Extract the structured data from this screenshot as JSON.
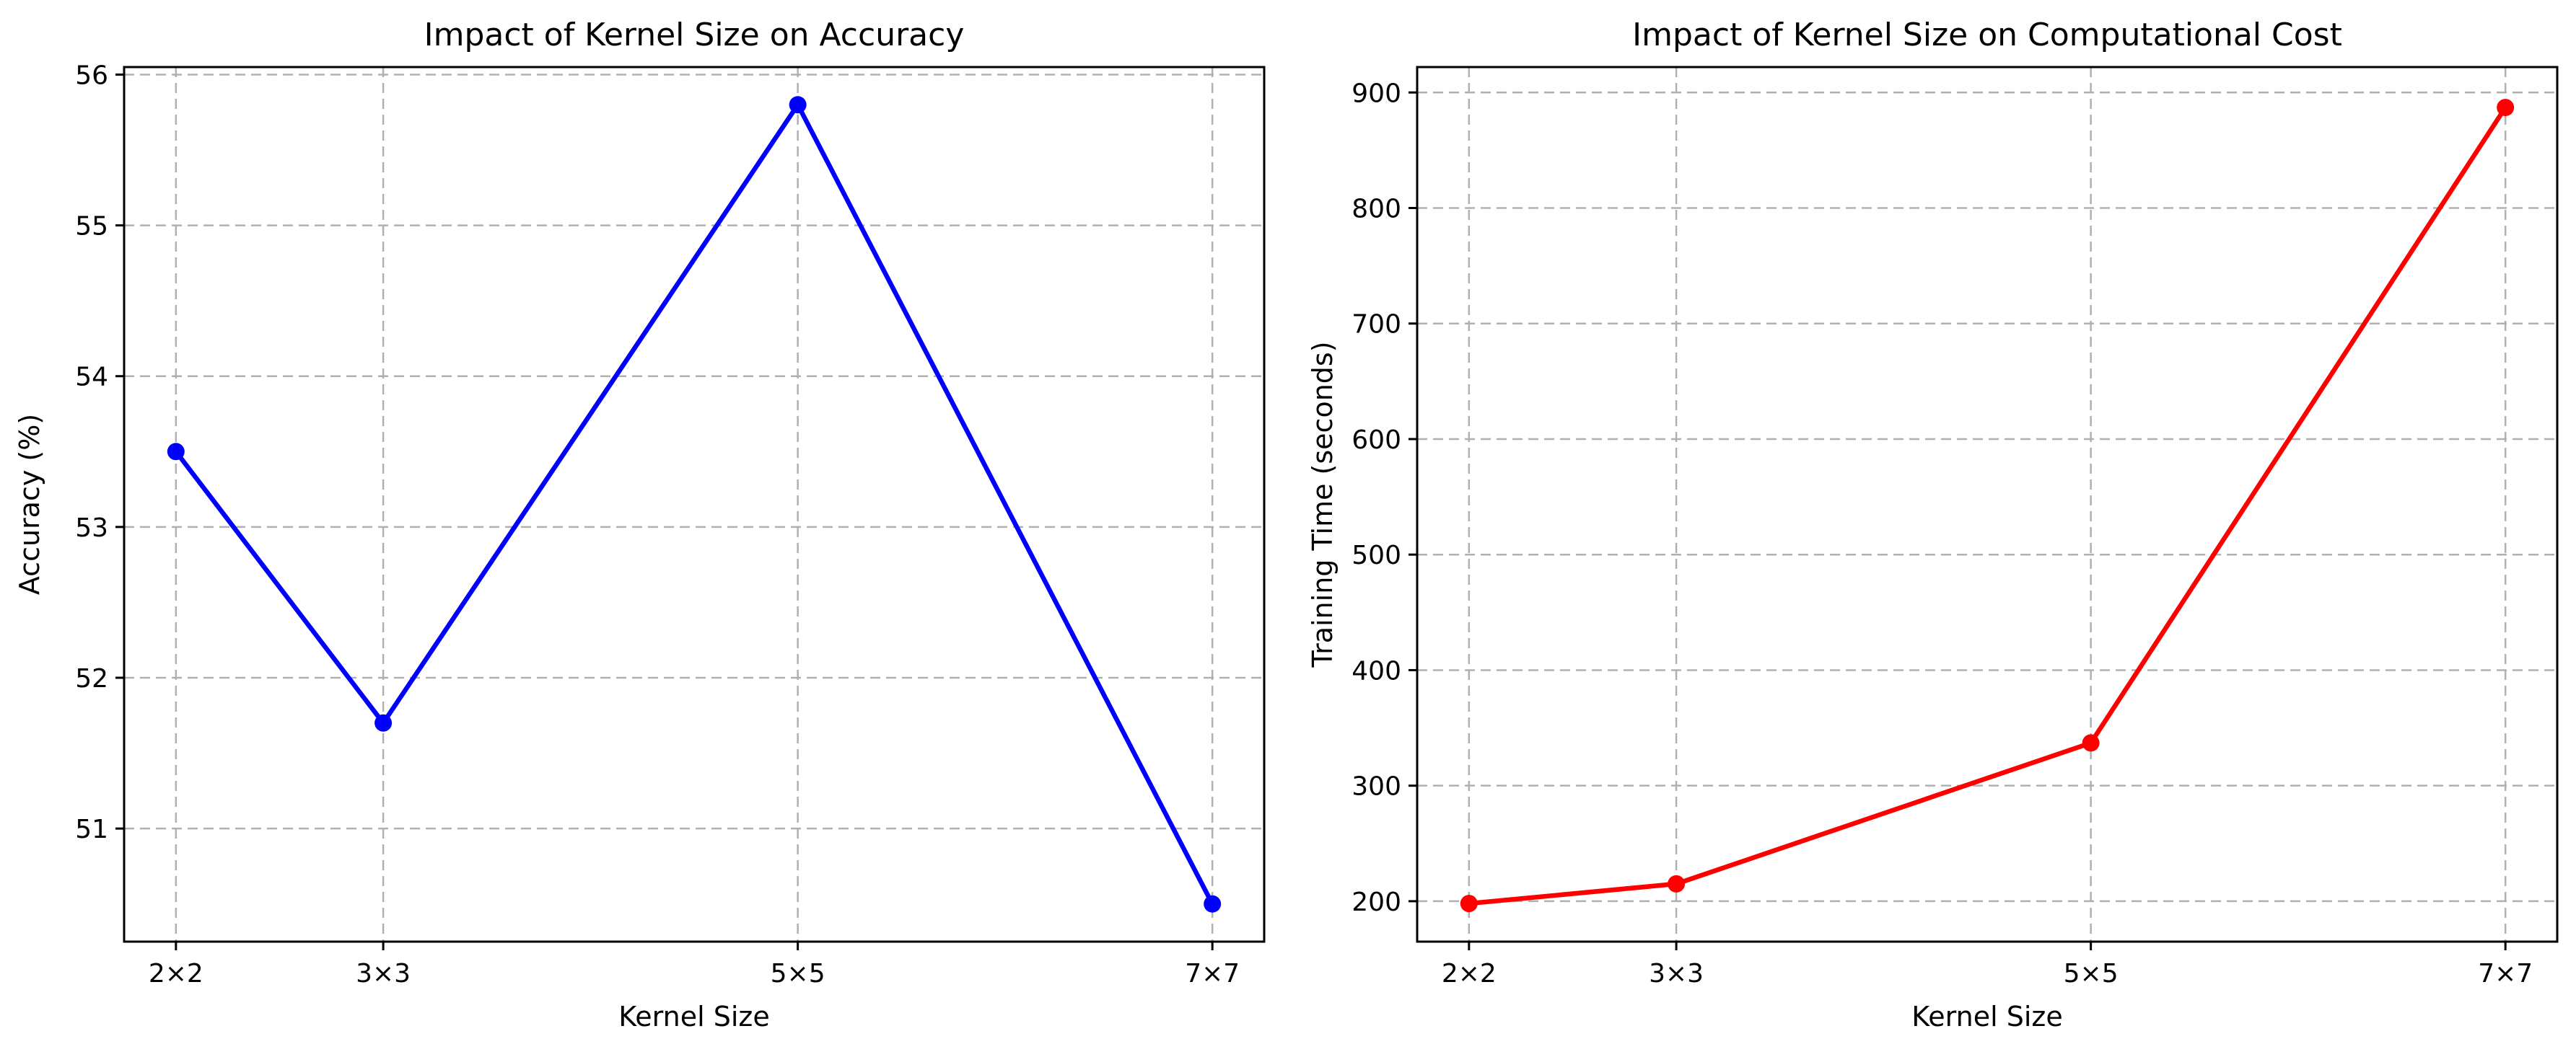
{
  "chart_data": [
    {
      "type": "line",
      "title": "Impact of Kernel Size on Accuracy",
      "xlabel": "Kernel Size",
      "ylabel": "Accuracy (%)",
      "x": [
        2,
        3,
        5,
        7
      ],
      "categories": [
        "2×2",
        "3×3",
        "5×5",
        "7×7"
      ],
      "xlim": [
        1.75,
        7.25
      ],
      "ylim": [
        50.25,
        56.05
      ],
      "yticks": [
        51,
        52,
        53,
        54,
        55,
        56
      ],
      "grid": true,
      "series": [
        {
          "values": [
            53.5,
            51.7,
            55.8,
            50.5
          ],
          "color": "#0000ff",
          "marker": "circle"
        }
      ]
    },
    {
      "type": "line",
      "title": "Impact of Kernel Size on Computational Cost",
      "xlabel": "Kernel Size",
      "ylabel": "Training Time (seconds)",
      "x": [
        2,
        3,
        5,
        7
      ],
      "categories": [
        "2×2",
        "3×3",
        "5×5",
        "7×7"
      ],
      "xlim": [
        1.75,
        7.25
      ],
      "ylim": [
        165,
        922
      ],
      "yticks": [
        200,
        300,
        400,
        500,
        600,
        700,
        800,
        900
      ],
      "grid": true,
      "series": [
        {
          "values": [
            198,
            215,
            337,
            887
          ],
          "color": "#ff0000",
          "marker": "circle"
        }
      ]
    }
  ]
}
